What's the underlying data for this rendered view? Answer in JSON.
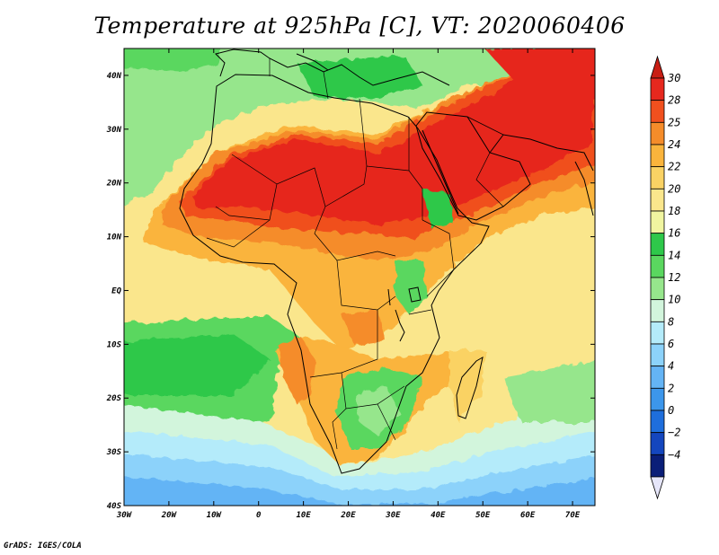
{
  "title": "Temperature at 925hPa [C], VT: 2020060406",
  "credit": "GrADS: IGES/COLA",
  "map": {
    "lon_range": [
      -30,
      75
    ],
    "lat_range": [
      -40,
      45
    ],
    "lat_ticks": [
      {
        "value": 40,
        "label": "40N"
      },
      {
        "value": 30,
        "label": "30N"
      },
      {
        "value": 20,
        "label": "20N"
      },
      {
        "value": 10,
        "label": "10N"
      },
      {
        "value": 0,
        "label": "EQ"
      },
      {
        "value": -10,
        "label": "10S"
      },
      {
        "value": -20,
        "label": "20S"
      },
      {
        "value": -30,
        "label": "30S"
      },
      {
        "value": -40,
        "label": "40S"
      }
    ],
    "lon_ticks": [
      {
        "value": -30,
        "label": "30W"
      },
      {
        "value": -20,
        "label": "20W"
      },
      {
        "value": -10,
        "label": "10W"
      },
      {
        "value": 0,
        "label": "0"
      },
      {
        "value": 10,
        "label": "10E"
      },
      {
        "value": 20,
        "label": "20E"
      },
      {
        "value": 30,
        "label": "30E"
      },
      {
        "value": 40,
        "label": "40E"
      },
      {
        "value": 50,
        "label": "50E"
      },
      {
        "value": 60,
        "label": "60E"
      },
      {
        "value": 70,
        "label": "70E"
      }
    ]
  },
  "colorbar": {
    "levels": [
      "30",
      "28",
      "25",
      "24",
      "22",
      "20",
      "18",
      "16",
      "14",
      "12",
      "10",
      "8",
      "6",
      "4",
      "2",
      "0",
      "-2",
      "-4"
    ],
    "colors": [
      "#e6281e",
      "#f0501e",
      "#f58c2a",
      "#fab43c",
      "#fad264",
      "#fae68c",
      "#f0f5a0",
      "#2ec84a",
      "#5ad75f",
      "#96e68c",
      "#d2f5dc",
      "#b4ebfa",
      "#8cd2fa",
      "#64b4f5",
      "#3c96eb",
      "#1e6edc",
      "#1446be",
      "#0a1e78"
    ],
    "top_cap": "#c81e14",
    "bottom_cap": "#e6e6fa"
  }
}
